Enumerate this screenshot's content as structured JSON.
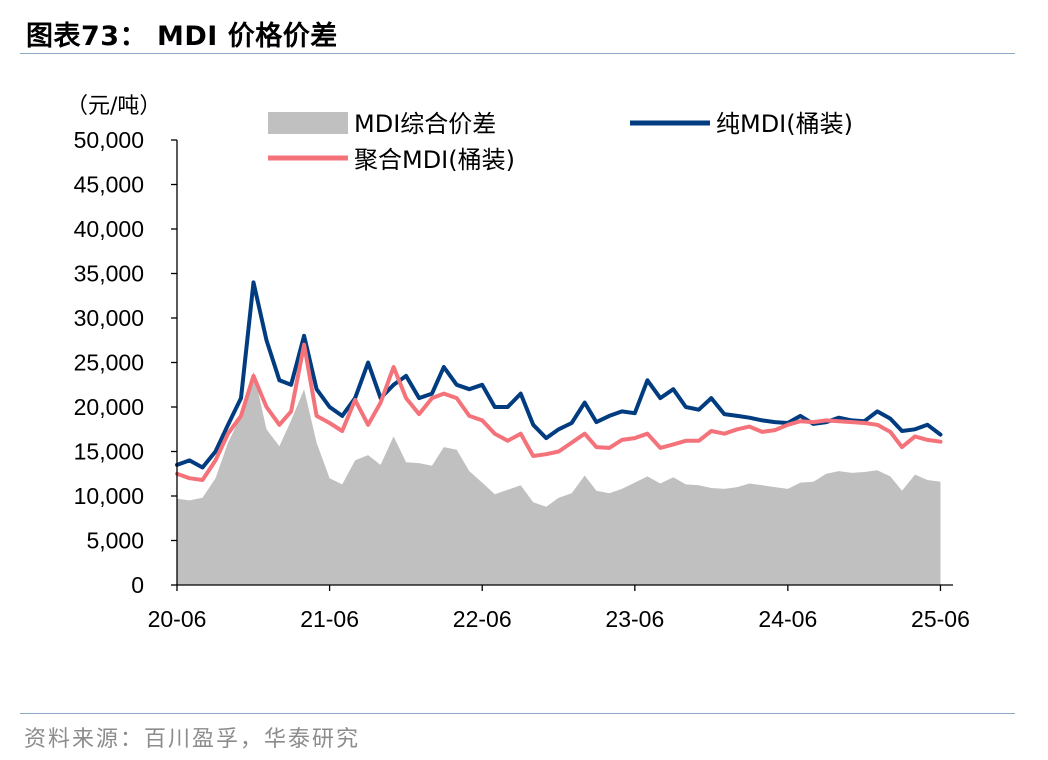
{
  "header": {
    "title": "图表73：  MDI 价格价差"
  },
  "footer": {
    "source": "资料来源：百川盈孚，华泰研究"
  },
  "colors": {
    "spread": "#c0c0c0",
    "pure": "#003c7f",
    "polymer": "#f4727a",
    "rule": "#8ea9c8",
    "source_text": "#8c8c8c"
  },
  "chart_data": {
    "type": "line",
    "unit_label": "（元/吨）",
    "x_ticks": [
      "20-06",
      "21-06",
      "22-06",
      "23-06",
      "24-06",
      "25-06"
    ],
    "x_range": [
      "20-06",
      "25-07"
    ],
    "ylim": [
      0,
      50000
    ],
    "y_ticks": [
      "0",
      "5,000",
      "10,000",
      "15,000",
      "20,000",
      "25,000",
      "30,000",
      "35,000",
      "40,000",
      "45,000",
      "50,000"
    ],
    "y_tick_values": [
      0,
      5000,
      10000,
      15000,
      20000,
      25000,
      30000,
      35000,
      40000,
      45000,
      50000
    ],
    "legend": [
      "MDI综合价差",
      "纯MDI(桶装)",
      "聚合MDI(桶装)"
    ],
    "legend_position": "top",
    "grid": false,
    "series": [
      {
        "name": "MDI综合价差",
        "style": "area",
        "color": "#c0c0c0",
        "points": [
          [
            "2020-06-01",
            9700
          ],
          [
            "2020-07-01",
            9500
          ],
          [
            "2020-08-01",
            9800
          ],
          [
            "2020-09-01",
            12000
          ],
          [
            "2020-10-01",
            16000
          ],
          [
            "2020-11-01",
            19000
          ],
          [
            "2020-12-01",
            24000
          ],
          [
            "2021-01-01",
            17500
          ],
          [
            "2021-02-01",
            15600
          ],
          [
            "2021-03-01",
            18500
          ],
          [
            "2021-04-01",
            22000
          ],
          [
            "2021-05-01",
            16000
          ],
          [
            "2021-06-01",
            12000
          ],
          [
            "2021-07-01",
            11300
          ],
          [
            "2021-08-01",
            14000
          ],
          [
            "2021-09-01",
            14600
          ],
          [
            "2021-10-01",
            13500
          ],
          [
            "2021-11-01",
            16700
          ],
          [
            "2021-12-01",
            13800
          ],
          [
            "2022-01-01",
            13700
          ],
          [
            "2022-02-01",
            13400
          ],
          [
            "2022-03-01",
            15500
          ],
          [
            "2022-04-01",
            15200
          ],
          [
            "2022-05-01",
            12800
          ],
          [
            "2022-06-01",
            11500
          ],
          [
            "2022-07-01",
            10200
          ],
          [
            "2022-08-01",
            10700
          ],
          [
            "2022-09-01",
            11200
          ],
          [
            "2022-10-01",
            9300
          ],
          [
            "2022-11-01",
            8800
          ],
          [
            "2022-12-01",
            9800
          ],
          [
            "2023-01-01",
            10300
          ],
          [
            "2023-02-01",
            12300
          ],
          [
            "2023-03-01",
            10600
          ],
          [
            "2023-04-01",
            10300
          ],
          [
            "2023-05-01",
            10800
          ],
          [
            "2023-06-01",
            11500
          ],
          [
            "2023-07-01",
            12200
          ],
          [
            "2023-08-01",
            11400
          ],
          [
            "2023-09-01",
            12100
          ],
          [
            "2023-10-01",
            11300
          ],
          [
            "2023-11-01",
            11200
          ],
          [
            "2023-12-01",
            10900
          ],
          [
            "2024-01-01",
            10800
          ],
          [
            "2024-02-01",
            11000
          ],
          [
            "2024-03-01",
            11400
          ],
          [
            "2024-04-01",
            11200
          ],
          [
            "2024-05-01",
            11000
          ],
          [
            "2024-06-01",
            10800
          ],
          [
            "2024-07-01",
            11500
          ],
          [
            "2024-08-01",
            11600
          ],
          [
            "2024-09-01",
            12500
          ],
          [
            "2024-10-01",
            12800
          ],
          [
            "2024-11-01",
            12600
          ],
          [
            "2024-12-01",
            12700
          ],
          [
            "2025-01-01",
            12900
          ],
          [
            "2025-02-01",
            12200
          ],
          [
            "2025-03-01",
            10600
          ],
          [
            "2025-04-01",
            12400
          ],
          [
            "2025-05-01",
            11800
          ],
          [
            "2025-06-01",
            11600
          ]
        ]
      },
      {
        "name": "纯MDI(桶装)",
        "style": "line",
        "color": "#003c7f",
        "points": [
          [
            "2020-06-01",
            13500
          ],
          [
            "2020-07-01",
            14000
          ],
          [
            "2020-08-01",
            13200
          ],
          [
            "2020-09-01",
            15000
          ],
          [
            "2020-10-01",
            18000
          ],
          [
            "2020-11-01",
            21000
          ],
          [
            "2020-12-01",
            34000
          ],
          [
            "2021-01-01",
            27500
          ],
          [
            "2021-02-01",
            23000
          ],
          [
            "2021-03-01",
            22500
          ],
          [
            "2021-04-01",
            28000
          ],
          [
            "2021-05-01",
            22000
          ],
          [
            "2021-06-01",
            20000
          ],
          [
            "2021-07-01",
            19000
          ],
          [
            "2021-08-01",
            21000
          ],
          [
            "2021-09-01",
            25000
          ],
          [
            "2021-10-01",
            21000
          ],
          [
            "2021-11-01",
            22500
          ],
          [
            "2021-12-01",
            23500
          ],
          [
            "2022-01-01",
            21000
          ],
          [
            "2022-02-01",
            21500
          ],
          [
            "2022-03-01",
            24500
          ],
          [
            "2022-04-01",
            22500
          ],
          [
            "2022-05-01",
            22000
          ],
          [
            "2022-06-01",
            22500
          ],
          [
            "2022-07-01",
            20000
          ],
          [
            "2022-08-01",
            20000
          ],
          [
            "2022-09-01",
            21500
          ],
          [
            "2022-10-01",
            18000
          ],
          [
            "2022-11-01",
            16500
          ],
          [
            "2022-12-01",
            17500
          ],
          [
            "2023-01-01",
            18200
          ],
          [
            "2023-02-01",
            20500
          ],
          [
            "2023-03-01",
            18300
          ],
          [
            "2023-04-01",
            19000
          ],
          [
            "2023-05-01",
            19500
          ],
          [
            "2023-06-01",
            19300
          ],
          [
            "2023-07-01",
            23000
          ],
          [
            "2023-08-01",
            21000
          ],
          [
            "2023-09-01",
            22000
          ],
          [
            "2023-10-01",
            20000
          ],
          [
            "2023-11-01",
            19700
          ],
          [
            "2023-12-01",
            21000
          ],
          [
            "2024-01-01",
            19200
          ],
          [
            "2024-02-01",
            19000
          ],
          [
            "2024-03-01",
            18800
          ],
          [
            "2024-04-01",
            18500
          ],
          [
            "2024-05-01",
            18300
          ],
          [
            "2024-06-01",
            18200
          ],
          [
            "2024-07-01",
            19000
          ],
          [
            "2024-08-01",
            18100
          ],
          [
            "2024-09-01",
            18300
          ],
          [
            "2024-10-01",
            18800
          ],
          [
            "2024-11-01",
            18500
          ],
          [
            "2024-12-01",
            18400
          ],
          [
            "2025-01-01",
            19500
          ],
          [
            "2025-02-01",
            18700
          ],
          [
            "2025-03-01",
            17300
          ],
          [
            "2025-04-01",
            17500
          ],
          [
            "2025-05-01",
            18000
          ],
          [
            "2025-06-01",
            16900
          ]
        ]
      },
      {
        "name": "聚合MDI(桶装)",
        "style": "line",
        "color": "#f4727a",
        "points": [
          [
            "2020-06-01",
            12500
          ],
          [
            "2020-07-01",
            12000
          ],
          [
            "2020-08-01",
            11800
          ],
          [
            "2020-09-01",
            14000
          ],
          [
            "2020-10-01",
            17000
          ],
          [
            "2020-11-01",
            19000
          ],
          [
            "2020-12-01",
            23500
          ],
          [
            "2021-01-01",
            20000
          ],
          [
            "2021-02-01",
            18000
          ],
          [
            "2021-03-01",
            19500
          ],
          [
            "2021-04-01",
            27000
          ],
          [
            "2021-05-01",
            19000
          ],
          [
            "2021-06-01",
            18200
          ],
          [
            "2021-07-01",
            17300
          ],
          [
            "2021-08-01",
            20800
          ],
          [
            "2021-09-01",
            18000
          ],
          [
            "2021-10-01",
            20500
          ],
          [
            "2021-11-01",
            24500
          ],
          [
            "2021-12-01",
            21000
          ],
          [
            "2022-01-01",
            19200
          ],
          [
            "2022-02-01",
            21000
          ],
          [
            "2022-03-01",
            21500
          ],
          [
            "2022-04-01",
            21000
          ],
          [
            "2022-05-01",
            19000
          ],
          [
            "2022-06-01",
            18500
          ],
          [
            "2022-07-01",
            17000
          ],
          [
            "2022-08-01",
            16200
          ],
          [
            "2022-09-01",
            17000
          ],
          [
            "2022-10-01",
            14500
          ],
          [
            "2022-11-01",
            14700
          ],
          [
            "2022-12-01",
            15000
          ],
          [
            "2023-01-01",
            16000
          ],
          [
            "2023-02-01",
            17000
          ],
          [
            "2023-03-01",
            15500
          ],
          [
            "2023-04-01",
            15400
          ],
          [
            "2023-05-01",
            16300
          ],
          [
            "2023-06-01",
            16500
          ],
          [
            "2023-07-01",
            17000
          ],
          [
            "2023-08-01",
            15400
          ],
          [
            "2023-09-01",
            15800
          ],
          [
            "2023-10-01",
            16200
          ],
          [
            "2023-11-01",
            16200
          ],
          [
            "2023-12-01",
            17300
          ],
          [
            "2024-01-01",
            17000
          ],
          [
            "2024-02-01",
            17500
          ],
          [
            "2024-03-01",
            17800
          ],
          [
            "2024-04-01",
            17200
          ],
          [
            "2024-05-01",
            17400
          ],
          [
            "2024-06-01",
            18000
          ],
          [
            "2024-07-01",
            18400
          ],
          [
            "2024-08-01",
            18300
          ],
          [
            "2024-09-01",
            18500
          ],
          [
            "2024-10-01",
            18400
          ],
          [
            "2024-11-01",
            18300
          ],
          [
            "2024-12-01",
            18200
          ],
          [
            "2025-01-01",
            18000
          ],
          [
            "2025-02-01",
            17200
          ],
          [
            "2025-03-01",
            15500
          ],
          [
            "2025-04-01",
            16700
          ],
          [
            "2025-05-01",
            16300
          ],
          [
            "2025-06-01",
            16100
          ]
        ]
      }
    ]
  }
}
